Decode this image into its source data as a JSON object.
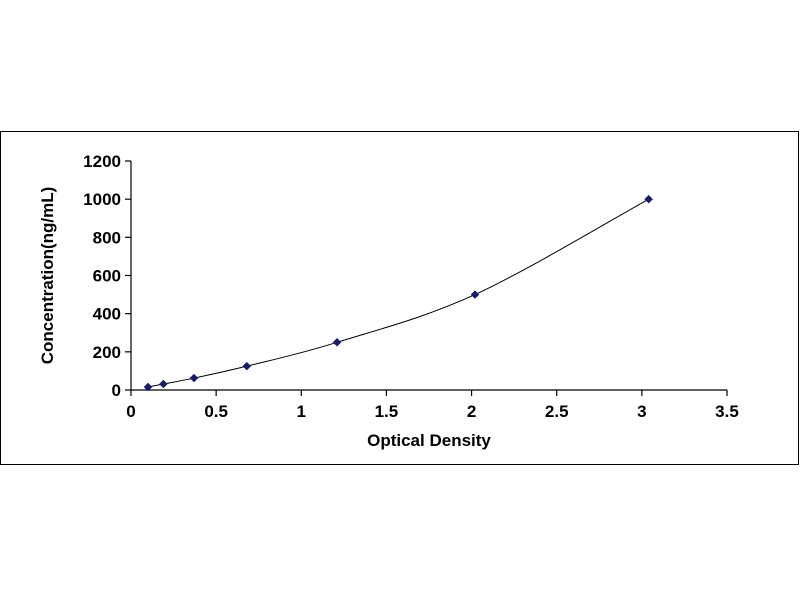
{
  "chart_data": {
    "type": "scatter",
    "title": "",
    "xlabel": "Optical Density",
    "ylabel": "Concentration(ng/mL)",
    "xlim": [
      0,
      3.5
    ],
    "ylim": [
      0,
      1200
    ],
    "x_ticks": [
      0,
      0.5,
      1,
      1.5,
      2,
      2.5,
      3,
      3.5
    ],
    "y_ticks": [
      0,
      200,
      400,
      600,
      800,
      1000,
      1200
    ],
    "x_tick_labels": [
      "0",
      "0.5",
      "1",
      "1.5",
      "2",
      "2.5",
      "3",
      "3.5"
    ],
    "y_tick_labels": [
      "0",
      "200",
      "400",
      "600",
      "800",
      "1000",
      "1200"
    ],
    "grid": false,
    "legend": "none",
    "series": [
      {
        "marker": "diamond",
        "trendline": "smooth",
        "color": "#1a1a6e",
        "points": [
          {
            "x": 0.1,
            "y": 15.6
          },
          {
            "x": 0.19,
            "y": 31.2
          },
          {
            "x": 0.37,
            "y": 62.5
          },
          {
            "x": 0.68,
            "y": 125
          },
          {
            "x": 1.21,
            "y": 250
          },
          {
            "x": 2.02,
            "y": 500
          },
          {
            "x": 3.04,
            "y": 1000
          }
        ]
      }
    ]
  }
}
